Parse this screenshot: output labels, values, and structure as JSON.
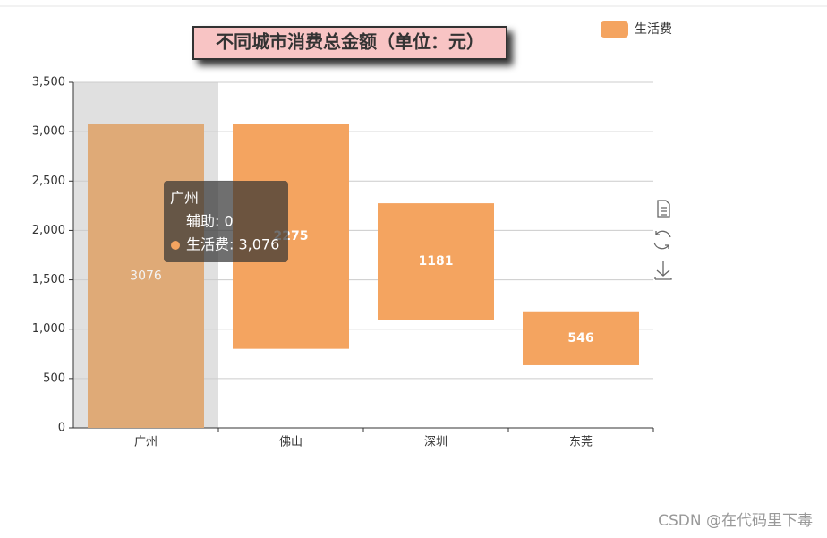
{
  "chart_data": {
    "type": "waterfall",
    "title": "不同城市消费总金额（单位：元）",
    "categories": [
      "广州",
      "佛山",
      "深圳",
      "东莞"
    ],
    "series": [
      {
        "name": "辅助",
        "color": "transparent",
        "values": [
          0,
          801,
          1094,
          635
        ]
      },
      {
        "name": "生活费",
        "color": "#f4a460",
        "values": [
          3076,
          2275,
          1181,
          546
        ]
      }
    ],
    "ylim": [
      0,
      3500
    ],
    "yticks": [
      0,
      500,
      {
        "value": 1000,
        "label": "1,000"
      },
      {
        "value": 1500,
        "label": "1,500"
      },
      {
        "value": 2000,
        "label": "2,000"
      },
      {
        "value": 2500,
        "label": "2,500"
      },
      {
        "value": 3000,
        "label": "3,000"
      },
      {
        "value": 3500,
        "label": "3,500"
      }
    ],
    "grid": true,
    "legend_position": "top-right",
    "tooltip": {
      "title": "广州",
      "rows": [
        "辅助: 0",
        "生活费: 3,076"
      ]
    },
    "watermark": "CSDN @在代码里下毒"
  }
}
